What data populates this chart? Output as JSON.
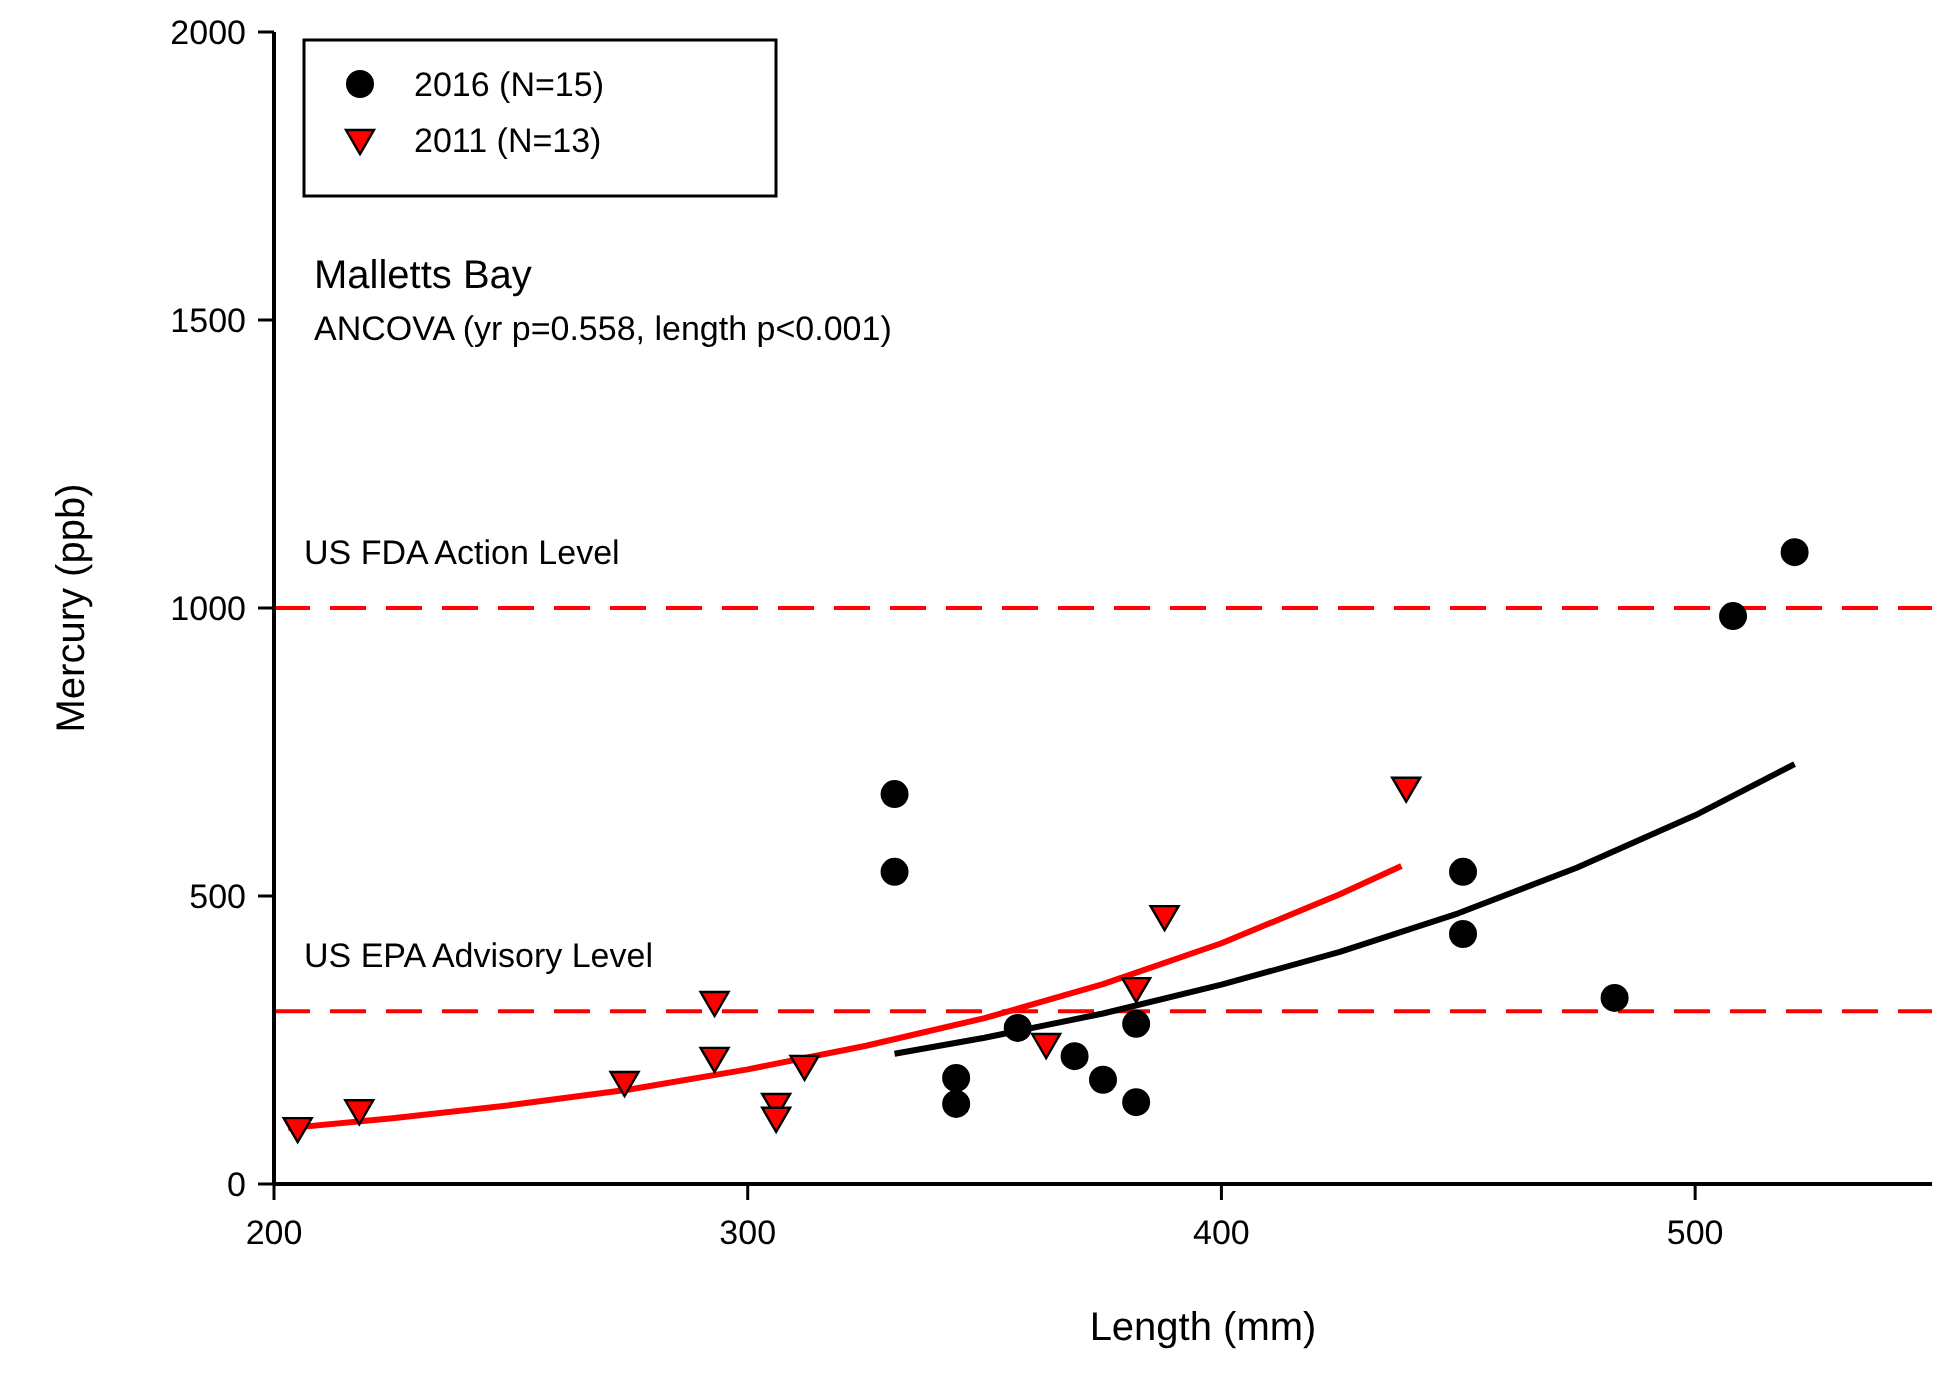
{
  "chart_data": {
    "type": "scatter",
    "xlabel": "Length (mm)",
    "ylabel": "Mercury (ppb)",
    "xlim": [
      200,
      550
    ],
    "xticks": [
      200,
      300,
      400,
      500
    ],
    "ylim": [
      0,
      2000
    ],
    "yticks": [
      0,
      500,
      1000,
      1500,
      2000
    ],
    "grid": false,
    "legend": "top left",
    "annotations": [
      "Malletts Bay",
      "ANCOVA (yr p=0.558, length p<0.001)"
    ],
    "ref_lines": [
      {
        "axis": "y",
        "value": 1000,
        "label": "US FDA Action Level",
        "color": "#ff0000",
        "line_style": "dashed"
      },
      {
        "axis": "y",
        "value": 300,
        "label": "US EPA Advisory Level",
        "color": "#ff0000",
        "line_style": "dashed"
      }
    ],
    "series": [
      {
        "name": "2016 (N=15)",
        "marker": "circle",
        "color": "#000000",
        "x": [
          331,
          331,
          344,
          344,
          357,
          369,
          375,
          382,
          382,
          451,
          451,
          483,
          508,
          521
        ],
        "values": [
          677,
          542,
          139,
          184,
          271,
          222,
          181,
          278,
          142,
          542,
          434,
          323,
          986,
          1097
        ]
      },
      {
        "name": "2011 (N=13)",
        "marker": "triangle",
        "color": "#ff0000",
        "x": [
          205,
          218,
          274,
          293,
          293,
          306,
          306,
          312,
          363,
          382,
          388,
          439
        ],
        "values": [
          97,
          128,
          177,
          316,
          219,
          139,
          115,
          205,
          243,
          340,
          465,
          688
        ]
      },
      {
        "type": "line",
        "marker": "none",
        "line_style": "solid",
        "color": "#ff0000",
        "x": [
          203,
          225,
          250,
          275,
          300,
          325,
          350,
          375,
          400,
          425,
          438
        ],
        "values": [
          97,
          114,
          137,
          164,
          199,
          240,
          288,
          347,
          418,
          503,
          552
        ]
      },
      {
        "type": "line",
        "marker": "none",
        "line_style": "solid",
        "color": "#000000",
        "x": [
          331,
          350,
          375,
          400,
          425,
          450,
          475,
          500,
          521
        ],
        "values": [
          226,
          254,
          296,
          346,
          403,
          470,
          549,
          640,
          729
        ]
      }
    ]
  }
}
